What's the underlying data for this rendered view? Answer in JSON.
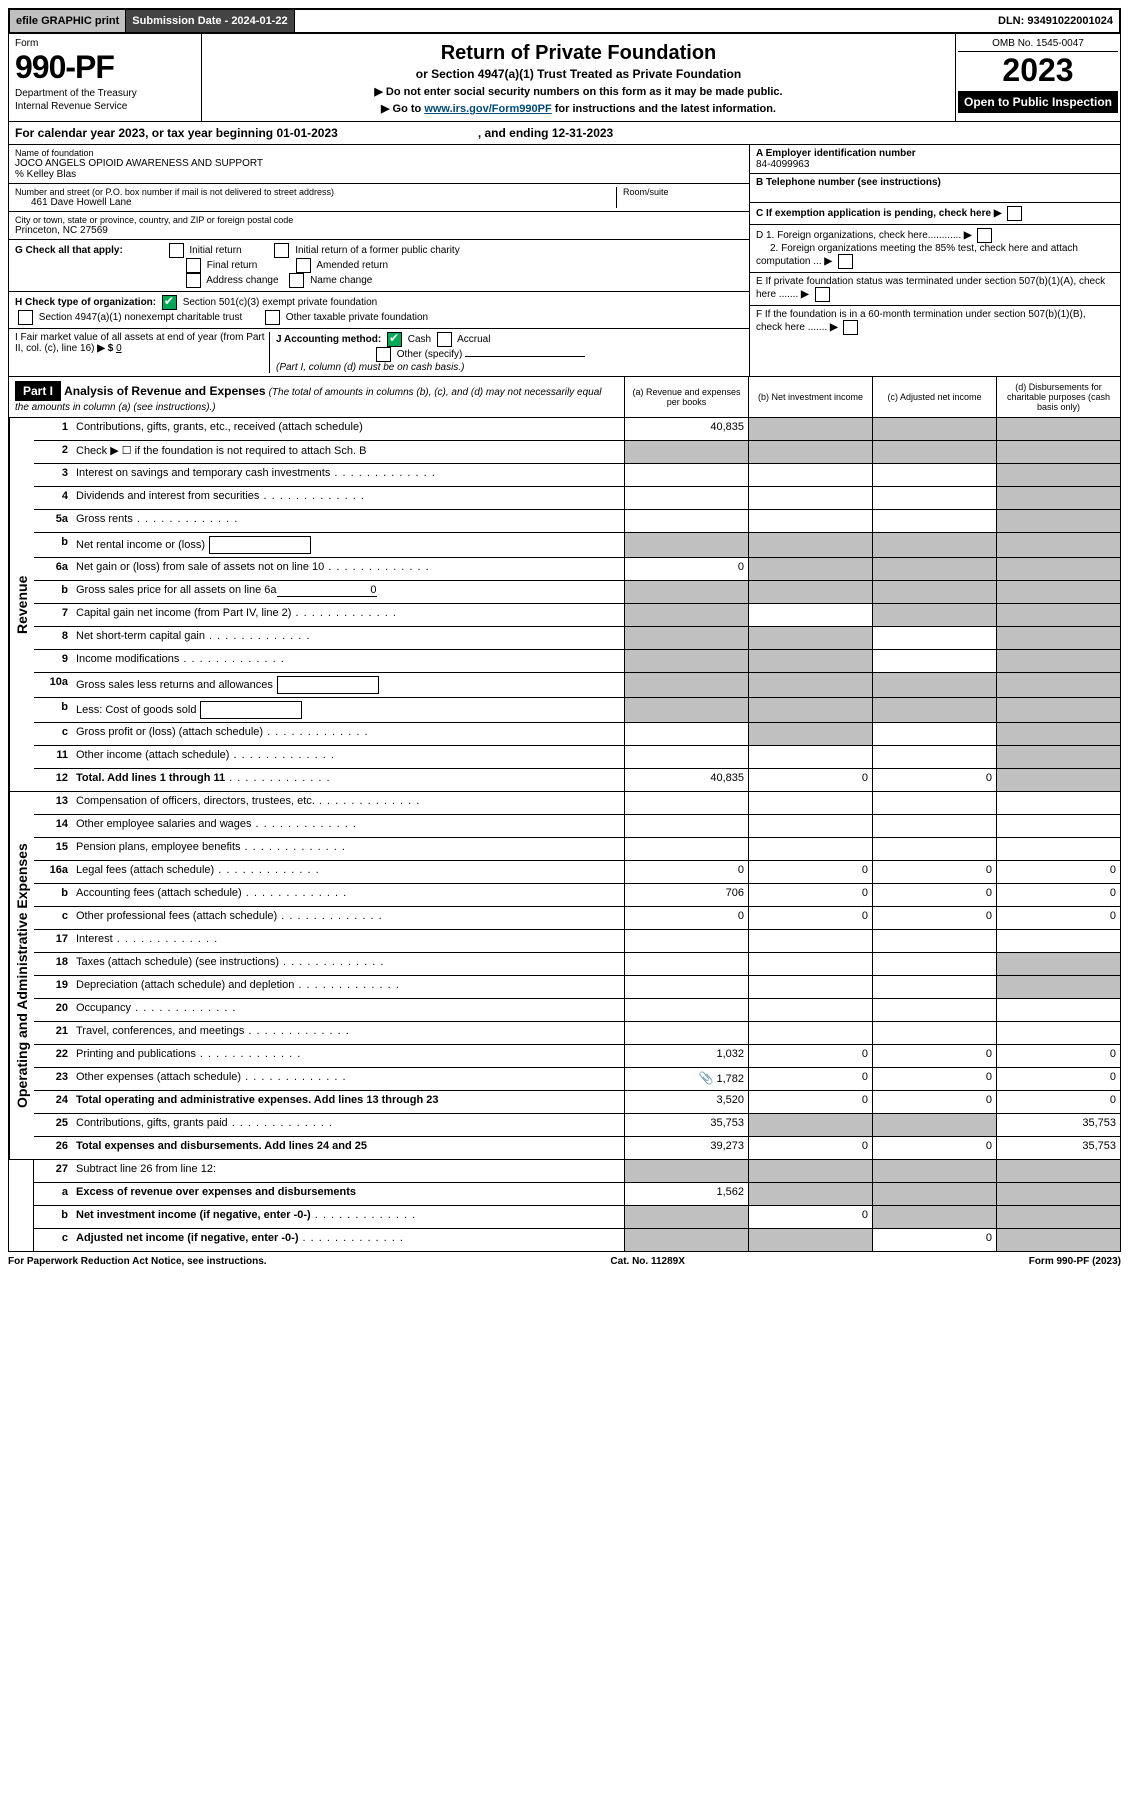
{
  "top_bar": {
    "efile": "efile GRAPHIC print",
    "submission": "Submission Date - 2024-01-22",
    "dln": "DLN: 93491022001024"
  },
  "header": {
    "form_word": "Form",
    "form_number": "990-PF",
    "dept1": "Department of the Treasury",
    "dept2": "Internal Revenue Service",
    "title": "Return of Private Foundation",
    "subtitle": "or Section 4947(a)(1) Trust Treated as Private Foundation",
    "line_a": "▶ Do not enter social security numbers on this form as it may be made public.",
    "line_b_pre": "▶ Go to ",
    "line_b_link": "www.irs.gov/Form990PF",
    "line_b_post": " for instructions and the latest information.",
    "omb": "OMB No. 1545-0047",
    "year": "2023",
    "open": "Open to Public Inspection"
  },
  "cal_year": {
    "text_a": "For calendar year 2023, or tax year beginning 01-01-2023",
    "text_b": ", and ending 12-31-2023"
  },
  "info": {
    "name_label": "Name of foundation",
    "name": "JOCO ANGELS OPIOID AWARENESS AND SUPPORT",
    "care_of": "% Kelley Blas",
    "street_label": "Number and street (or P.O. box number if mail is not delivered to street address)",
    "street": "461 Dave Howell Lane",
    "room_label": "Room/suite",
    "city_label": "City or town, state or province, country, and ZIP or foreign postal code",
    "city": "Princeton, NC  27569",
    "a_label": "A Employer identification number",
    "a_val": "84-4099963",
    "b_label": "B Telephone number (see instructions)",
    "c_label": "C If exemption application is pending, check here",
    "d1": "D 1. Foreign organizations, check here............",
    "d2": "2. Foreign organizations meeting the 85% test, check here and attach computation ...",
    "e": "E  If private foundation status was terminated under section 507(b)(1)(A), check here .......",
    "f": "F  If the foundation is in a 60-month termination under section 507(b)(1)(B), check here .......",
    "g_label": "G Check all that apply:",
    "g_opts": [
      "Initial return",
      "Initial return of a former public charity",
      "Final return",
      "Amended return",
      "Address change",
      "Name change"
    ],
    "h_label": "H Check type of organization:",
    "h_opt1": "Section 501(c)(3) exempt private foundation",
    "h_opt2": "Section 4947(a)(1) nonexempt charitable trust",
    "h_opt3": "Other taxable private foundation",
    "i_label": "I Fair market value of all assets at end of year (from Part II, col. (c), line 16)",
    "i_val": "0",
    "j_label": "J Accounting method:",
    "j_cash": "Cash",
    "j_accrual": "Accrual",
    "j_other": "Other (specify)",
    "j_note": "(Part I, column (d) must be on cash basis.)"
  },
  "part1": {
    "label": "Part I",
    "title": "Analysis of Revenue and Expenses",
    "note": "(The total of amounts in columns (b), (c), and (d) may not necessarily equal the amounts in column (a) (see instructions).)",
    "col_a": "(a)  Revenue and expenses per books",
    "col_b": "(b)  Net investment income",
    "col_c": "(c)  Adjusted net income",
    "col_d": "(d)  Disbursements for charitable purposes (cash basis only)"
  },
  "side": {
    "revenue": "Revenue",
    "expenses": "Operating and Administrative Expenses"
  },
  "lines": {
    "l1": {
      "n": "1",
      "d": "Contributions, gifts, grants, etc., received (attach schedule)",
      "a": "40,835"
    },
    "l2": {
      "n": "2",
      "d": "Check ▶ ☐ if the foundation is not required to attach Sch. B"
    },
    "l3": {
      "n": "3",
      "d": "Interest on savings and temporary cash investments"
    },
    "l4": {
      "n": "4",
      "d": "Dividends and interest from securities"
    },
    "l5a": {
      "n": "5a",
      "d": "Gross rents"
    },
    "l5b": {
      "n": "b",
      "d": "Net rental income or (loss)"
    },
    "l6a": {
      "n": "6a",
      "d": "Net gain or (loss) from sale of assets not on line 10",
      "a": "0"
    },
    "l6b": {
      "n": "b",
      "d": "Gross sales price for all assets on line 6a",
      "inline": "0"
    },
    "l7": {
      "n": "7",
      "d": "Capital gain net income (from Part IV, line 2)"
    },
    "l8": {
      "n": "8",
      "d": "Net short-term capital gain"
    },
    "l9": {
      "n": "9",
      "d": "Income modifications"
    },
    "l10a": {
      "n": "10a",
      "d": "Gross sales less returns and allowances"
    },
    "l10b": {
      "n": "b",
      "d": "Less: Cost of goods sold"
    },
    "l10c": {
      "n": "c",
      "d": "Gross profit or (loss) (attach schedule)"
    },
    "l11": {
      "n": "11",
      "d": "Other income (attach schedule)"
    },
    "l12": {
      "n": "12",
      "d": "Total. Add lines 1 through 11",
      "a": "40,835",
      "b": "0",
      "c": "0"
    },
    "l13": {
      "n": "13",
      "d": "Compensation of officers, directors, trustees, etc."
    },
    "l14": {
      "n": "14",
      "d": "Other employee salaries and wages"
    },
    "l15": {
      "n": "15",
      "d": "Pension plans, employee benefits"
    },
    "l16a": {
      "n": "16a",
      "d": "Legal fees (attach schedule)",
      "a": "0",
      "b": "0",
      "c": "0",
      "dd": "0"
    },
    "l16b": {
      "n": "b",
      "d": "Accounting fees (attach schedule)",
      "a": "706",
      "b": "0",
      "c": "0",
      "dd": "0"
    },
    "l16c": {
      "n": "c",
      "d": "Other professional fees (attach schedule)",
      "a": "0",
      "b": "0",
      "c": "0",
      "dd": "0"
    },
    "l17": {
      "n": "17",
      "d": "Interest"
    },
    "l18": {
      "n": "18",
      "d": "Taxes (attach schedule) (see instructions)"
    },
    "l19": {
      "n": "19",
      "d": "Depreciation (attach schedule) and depletion"
    },
    "l20": {
      "n": "20",
      "d": "Occupancy"
    },
    "l21": {
      "n": "21",
      "d": "Travel, conferences, and meetings"
    },
    "l22": {
      "n": "22",
      "d": "Printing and publications",
      "a": "1,032",
      "b": "0",
      "c": "0",
      "dd": "0"
    },
    "l23": {
      "n": "23",
      "d": "Other expenses (attach schedule)",
      "a": "1,782",
      "b": "0",
      "c": "0",
      "dd": "0",
      "icon": true
    },
    "l24": {
      "n": "24",
      "d": "Total operating and administrative expenses. Add lines 13 through 23",
      "a": "3,520",
      "b": "0",
      "c": "0",
      "dd": "0"
    },
    "l25": {
      "n": "25",
      "d": "Contributions, gifts, grants paid",
      "a": "35,753",
      "dd": "35,753"
    },
    "l26": {
      "n": "26",
      "d": "Total expenses and disbursements. Add lines 24 and 25",
      "a": "39,273",
      "b": "0",
      "c": "0",
      "dd": "35,753"
    },
    "l27": {
      "n": "27",
      "d": "Subtract line 26 from line 12:"
    },
    "l27a": {
      "n": "a",
      "d": "Excess of revenue over expenses and disbursements",
      "a": "1,562"
    },
    "l27b": {
      "n": "b",
      "d": "Net investment income (if negative, enter -0-)",
      "b": "0"
    },
    "l27c": {
      "n": "c",
      "d": "Adjusted net income (if negative, enter -0-)",
      "c": "0"
    }
  },
  "footer": {
    "left": "For Paperwork Reduction Act Notice, see instructions.",
    "mid": "Cat. No. 11289X",
    "right": "Form 990-PF (2023)"
  },
  "colors": {
    "header_bg": "#000000",
    "grey_cell": "#c0c0c0",
    "link": "#004b7a"
  }
}
